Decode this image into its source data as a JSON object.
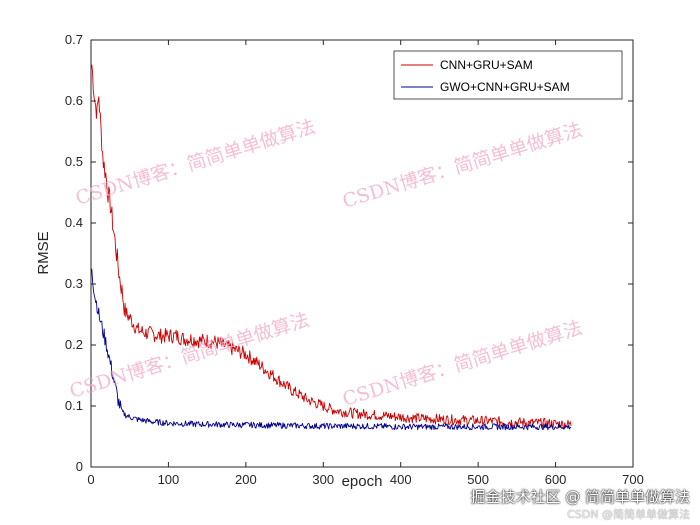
{
  "chart_data": {
    "type": "line",
    "xlabel": "epoch",
    "ylabel": "RMSE",
    "xlim": [
      0,
      700
    ],
    "ylim": [
      0,
      0.7
    ],
    "xticks": [
      "0",
      "100",
      "200",
      "300",
      "400",
      "500",
      "600",
      "700"
    ],
    "yticks": [
      "0",
      "0.1",
      "0.2",
      "0.3",
      "0.4",
      "0.5",
      "0.6",
      "0.7"
    ],
    "legend_position": "top-right",
    "grid": false,
    "series": [
      {
        "name": "CNN+GRU+SAM",
        "color": "#cc0000",
        "x": [
          1,
          3,
          5,
          8,
          10,
          13,
          16,
          19,
          22,
          25,
          28,
          31,
          34,
          37,
          40,
          43,
          46,
          50,
          55,
          60,
          70,
          80,
          90,
          100,
          110,
          120,
          130,
          140,
          150,
          160,
          170,
          180,
          190,
          200,
          210,
          220,
          230,
          240,
          250,
          260,
          270,
          280,
          290,
          300,
          310,
          320,
          330,
          340,
          350,
          360,
          370,
          380,
          390,
          400,
          420,
          440,
          460,
          480,
          500,
          520,
          540,
          560,
          580,
          600,
          620
        ],
        "y": [
          0.66,
          0.63,
          0.6,
          0.58,
          0.61,
          0.55,
          0.5,
          0.48,
          0.45,
          0.43,
          0.4,
          0.37,
          0.34,
          0.31,
          0.29,
          0.26,
          0.25,
          0.245,
          0.235,
          0.225,
          0.22,
          0.218,
          0.215,
          0.215,
          0.215,
          0.21,
          0.21,
          0.207,
          0.207,
          0.205,
          0.2,
          0.195,
          0.19,
          0.185,
          0.175,
          0.165,
          0.155,
          0.145,
          0.135,
          0.125,
          0.118,
          0.11,
          0.105,
          0.1,
          0.095,
          0.092,
          0.09,
          0.088,
          0.087,
          0.086,
          0.085,
          0.084,
          0.083,
          0.082,
          0.08,
          0.079,
          0.078,
          0.077,
          0.076,
          0.075,
          0.074,
          0.073,
          0.072,
          0.071,
          0.07
        ]
      },
      {
        "name": "GWO+CNN+GRU+SAM",
        "color": "#00008b",
        "x": [
          1,
          3,
          5,
          8,
          10,
          13,
          16,
          20,
          25,
          30,
          35,
          40,
          45,
          50,
          60,
          70,
          80,
          100,
          120,
          140,
          160,
          180,
          200,
          250,
          300,
          350,
          400,
          450,
          500,
          550,
          600,
          620
        ],
        "y": [
          0.33,
          0.3,
          0.28,
          0.265,
          0.25,
          0.235,
          0.22,
          0.2,
          0.17,
          0.14,
          0.11,
          0.09,
          0.085,
          0.082,
          0.078,
          0.076,
          0.074,
          0.072,
          0.071,
          0.07,
          0.07,
          0.069,
          0.069,
          0.068,
          0.067,
          0.067,
          0.066,
          0.066,
          0.066,
          0.066,
          0.066,
          0.066
        ]
      }
    ]
  },
  "watermarks": [
    "CSDN博客：简简单单做算法",
    "CSDN博客：简简单单做算法",
    "CSDN博客：简简单单做算法",
    "CSDN博客：简简单单做算法"
  ],
  "footer": {
    "main": "掘金技术社区 @ 简简单单做算法",
    "sub": "CSDN @简简单单做算法"
  }
}
